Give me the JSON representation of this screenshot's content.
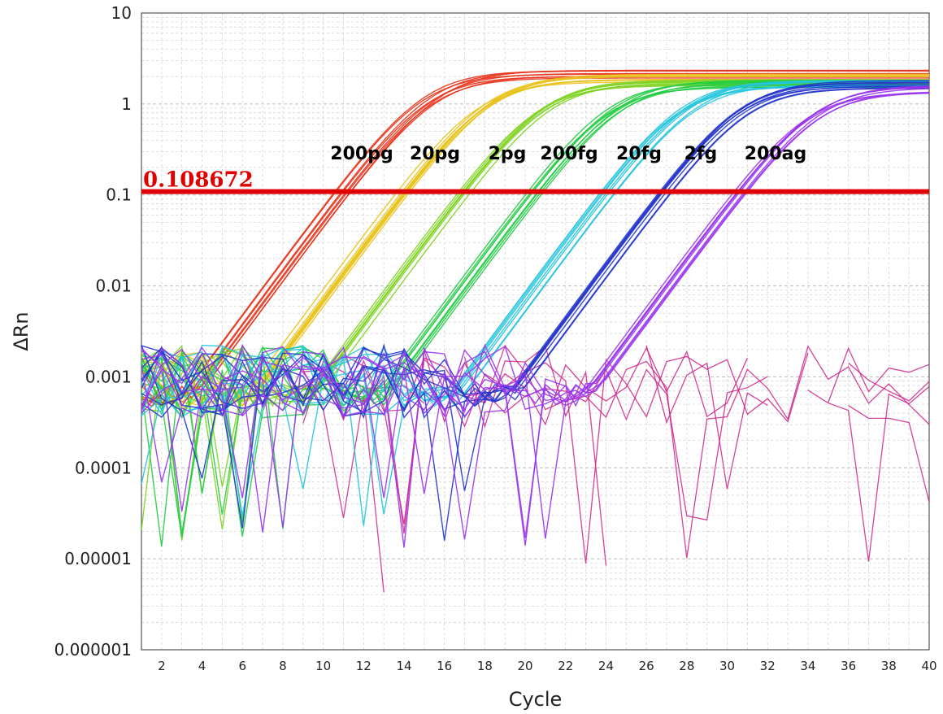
{
  "chart_data": {
    "type": "line",
    "title": "",
    "xlabel": "Cycle",
    "ylabel": "ΔRn",
    "yscale": "log",
    "xlim": [
      1,
      40
    ],
    "ylim": [
      1e-06,
      10
    ],
    "grid": true,
    "x_ticks": [
      "2",
      "4",
      "6",
      "8",
      "10",
      "12",
      "14",
      "16",
      "18",
      "20",
      "22",
      "24",
      "26",
      "28",
      "30",
      "32",
      "34",
      "36",
      "38",
      "40"
    ],
    "y_ticks": [
      "10",
      "1",
      "0.1",
      "0.01",
      "0.001",
      "0.0001",
      "0.00001",
      "0.000001"
    ],
    "threshold": {
      "value": 0.108672,
      "label": "0.108672",
      "color": "#e00000"
    },
    "dilution_labels": [
      "200pg",
      "20pg",
      "2pg",
      "200fg",
      "20fg",
      "2fg",
      "200ag"
    ],
    "series": [
      {
        "color": "#e8321a",
        "ct": 11.0,
        "plateau": 2.3,
        "replicates": 8
      },
      {
        "color": "#e8c21a",
        "ct": 13.9,
        "plateau": 2.1,
        "replicates": 8
      },
      {
        "color": "#7ed321",
        "ct": 17.1,
        "plateau": 1.9,
        "replicates": 8
      },
      {
        "color": "#22cc44",
        "ct": 20.5,
        "plateau": 1.8,
        "replicates": 8
      },
      {
        "color": "#22c4dd",
        "ct": 24.1,
        "plateau": 1.8,
        "replicates": 8
      },
      {
        "color": "#2233cc",
        "ct": 27.1,
        "plateau": 1.8,
        "replicates": 8
      },
      {
        "color": "#9933ee",
        "ct": 30.6,
        "plateau": 1.6,
        "replicates": 8
      }
    ],
    "noise_color": "#cc2288",
    "colors": {
      "background": "#ffffff",
      "grid": "#d4d4d4",
      "axis": "#555555"
    }
  }
}
